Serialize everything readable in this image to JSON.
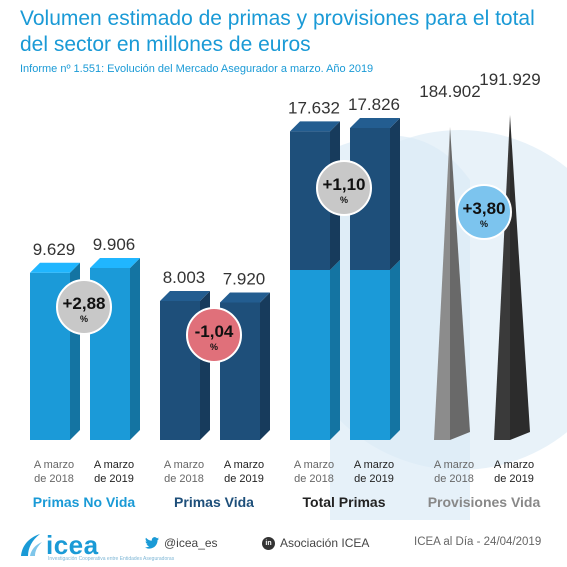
{
  "header": {
    "title": "Volumen estimado de primas y provisiones para el total del sector en millones de euros",
    "subtitle": "Informe nº 1.551: Evolución del Mercado Asegurador a marzo. Año 2019"
  },
  "chart_data": {
    "type": "bar",
    "groups": [
      {
        "name": "Primas No Vida",
        "bars": [
          {
            "period": "A marzo de 2018",
            "label": "9.629",
            "value": 9629
          },
          {
            "period": "A marzo de 2019",
            "label": "9.906",
            "value": 9906
          }
        ],
        "change": "+2,88",
        "change_unit": "%",
        "colors": {
          "bar1": "#1b9ad8",
          "bar2": "#1b9ad8",
          "badge": "#c8c8c8",
          "group_label": "#1a9ad6"
        }
      },
      {
        "name": "Primas Vida",
        "bars": [
          {
            "period": "A marzo de 2018",
            "label": "8.003",
            "value": 8003
          },
          {
            "period": "A marzo de 2019",
            "label": "7.920",
            "value": 7920
          }
        ],
        "change": "-1,04",
        "change_unit": "%",
        "colors": {
          "bar1": "#1e4f7a",
          "bar2": "#1e4f7a",
          "badge": "#e0707a",
          "group_label": "#1e4f7a"
        }
      },
      {
        "name": "Total Primas",
        "bars": [
          {
            "period": "A marzo de 2018",
            "label": "17.632",
            "value": 17632
          },
          {
            "period": "A marzo de 2019",
            "label": "17.826",
            "value": 17826
          }
        ],
        "change": "+1,10",
        "change_unit": "%",
        "colors": {
          "bar1": "#1e4f7a",
          "bar2": "#1e4f7a",
          "bar_lower": "#1b9ad8",
          "badge": "#c8c8c8",
          "group_label": "#222222"
        }
      },
      {
        "name": "Provisiones Vida",
        "bars": [
          {
            "period": "A marzo de 2018",
            "label": "184.902",
            "value": 184902
          },
          {
            "period": "A marzo de 2019",
            "label": "191.929",
            "value": 191929
          }
        ],
        "change": "+3,80",
        "change_unit": "%",
        "colors": {
          "bar1": "#8c8c8c",
          "bar2": "#3a3a3a",
          "badge": "#7cc4ee",
          "group_label": "#888888"
        }
      }
    ]
  },
  "footer": {
    "logo_text": "icea",
    "logo_tagline": "Investigación Cooperativa entre Entidades Aseguradoras",
    "twitter": "@icea_es",
    "linkedin": "Asociación ICEA",
    "source": "ICEA al Día - 24/04/2019"
  }
}
